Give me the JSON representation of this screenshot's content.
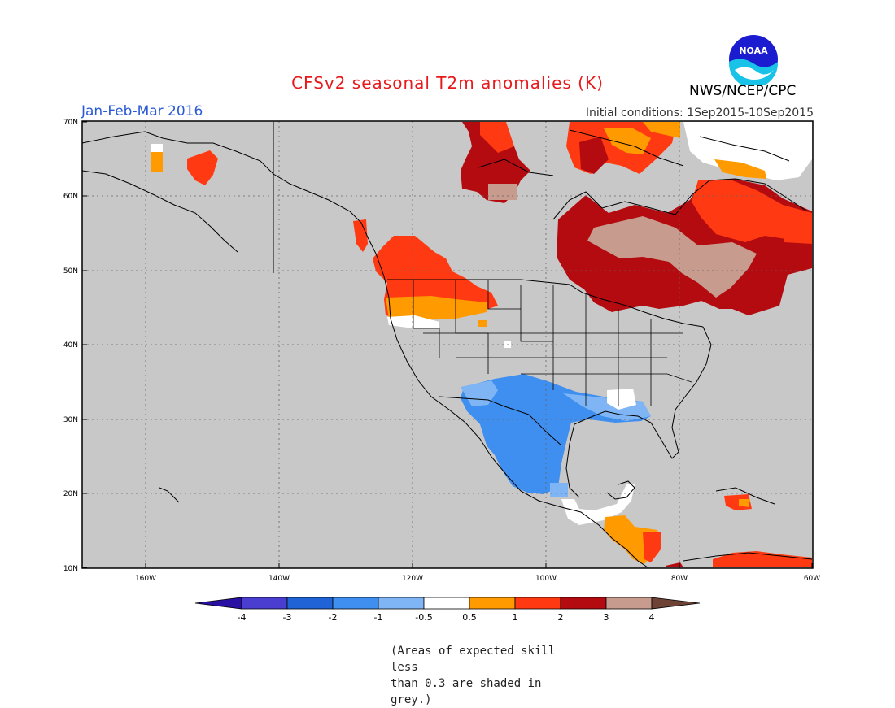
{
  "title": "CFSv2 seasonal T2m anomalies (K)",
  "period": "Jan-Feb-Mar 2016",
  "initial_conditions": "Initial conditions: 1Sep2015-10Sep2015",
  "agency": "NWS/NCEP/CPC",
  "logo_text": "NOAA",
  "footnote": [
    "(Areas of expected skill less",
    "than 0.3 are shaded in grey.)"
  ],
  "lat_labels": [
    "70N",
    "60N",
    "50N",
    "40N",
    "30N",
    "20N",
    "10N"
  ],
  "lon_labels": [
    "160W",
    "140W",
    "120W",
    "100W",
    "80W",
    "60W"
  ],
  "colorbar": {
    "ticks": [
      "-4",
      "-3",
      "-2",
      "-1",
      "-0.5",
      "0.5",
      "1",
      "2",
      "3",
      "4"
    ],
    "colors": [
      "#2a0fa3",
      "#4a3ed0",
      "#1f63d6",
      "#3f8ff0",
      "#7fb5f4",
      "#ffffff",
      "#ff9a00",
      "#ff3a12",
      "#b40b10",
      "#c79b8e",
      "#6e4336"
    ]
  },
  "colors": {
    "land_grey": "#c8c8c8",
    "title_red": "#e8191b",
    "period_blue": "#2a5ad6"
  }
}
